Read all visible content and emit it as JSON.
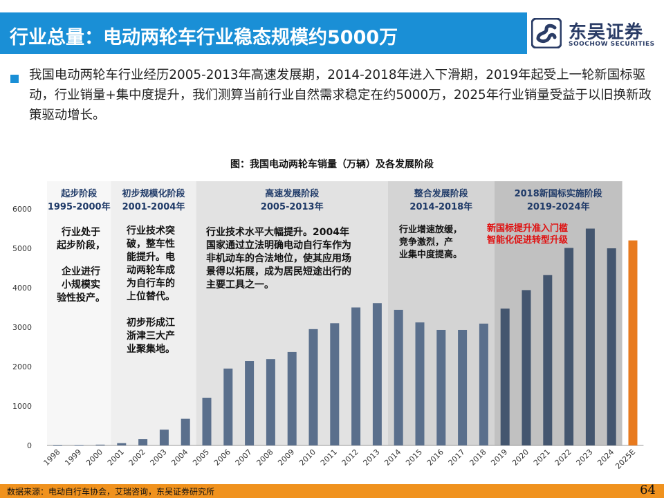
{
  "header": {
    "title": "行业总量：电动两轮车行业稳态规模约5000万"
  },
  "logo": {
    "cn": "东吴证券",
    "en": "SOOCHOW SECURITIES",
    "mark_icon": "soochow-s-logo-icon",
    "brand_color": "#2a3c66"
  },
  "summary": {
    "text": "我国电动两轮车行业经历2005-2013年高速发展期，2014-2018年进入下滑期，2019年起受上一轮新国标驱动，行业销量+集中度提升，我们测算当前行业自然需求稳定在约5000万，2025年行业销量受益于以旧换新政策驱动增长。"
  },
  "chart_data": {
    "type": "bar",
    "title": "图：我国电动两轮车销量（万辆）及各发展阶段",
    "categories": [
      "1998",
      "1999",
      "2000",
      "2001",
      "2002",
      "2003",
      "2004",
      "2005",
      "2006",
      "2007",
      "2008",
      "2009",
      "2010",
      "2011",
      "2012",
      "2013",
      "2014",
      "2015",
      "2016",
      "2017",
      "2018",
      "2019",
      "2020",
      "2021",
      "2022",
      "2023",
      "2024",
      "2025E"
    ],
    "values": [
      5,
      8,
      20,
      58,
      158,
      400,
      675,
      1210,
      1950,
      2140,
      2190,
      2370,
      2950,
      3100,
      3500,
      3610,
      3440,
      3120,
      2930,
      2930,
      3090,
      3470,
      3940,
      4320,
      5010,
      5500,
      5000,
      5200
    ],
    "ylim": [
      0,
      6000
    ],
    "yticks": [
      0,
      1000,
      2000,
      3000,
      4000,
      5000,
      6000
    ],
    "colors": {
      "bar": "#5a6f8c",
      "bar_dark": "#44566f",
      "forecast": "#e87a1e",
      "highlight_text": "#e01010"
    },
    "phases": [
      {
        "title": "起步阶段",
        "years": "1995-2000年",
        "from": 0,
        "to": 2,
        "bg": "#f7f7f7",
        "desc": [
          "行业处于",
          "起步阶段，",
          "",
          "企业进行",
          "小规模实",
          "验性投产。"
        ]
      },
      {
        "title": "初步规模化阶段",
        "years": "2001-2004年",
        "from": 3,
        "to": 6,
        "bg": "#efefef",
        "desc": [
          "行业技术突",
          "破，整车性",
          "能提升。电",
          "动两轮车成",
          "为自行车的",
          "上位替代。",
          "",
          "初步形成江",
          "浙津三大产",
          "业聚集地。"
        ]
      },
      {
        "title": "高速发展阶段",
        "years": "2005-2013年",
        "from": 7,
        "to": 15,
        "bg": "#e2e2e2",
        "desc": [
          "行业技术水平大幅提升。2004年",
          "国家通过立法明确电动自行车作为",
          "非机动车的合法地位，使其应用场",
          "景得以拓展，成为居民短途出行的",
          "主要工具之一。"
        ]
      },
      {
        "title": "整合发展阶段",
        "years": "2014-2018年",
        "from": 16,
        "to": 20,
        "bg": "#d4d4d4",
        "desc": [
          "行业增速放缓，",
          "竞争激烈，产",
          "业集中度提高。"
        ]
      },
      {
        "title": "2018新国标实施阶段",
        "years": "2019-2024年",
        "from": 21,
        "to": 26,
        "bg": "#c1c1c1",
        "desc": [
          "新国标提升准入门槛",
          "智能化促进转型升级"
        ],
        "highlight": true
      }
    ]
  },
  "footer": {
    "source": "数据来源：电动自行车协会，艾瑞咨询，东吴证券研究所",
    "page": "64",
    "bar_color": "#f0921e"
  }
}
